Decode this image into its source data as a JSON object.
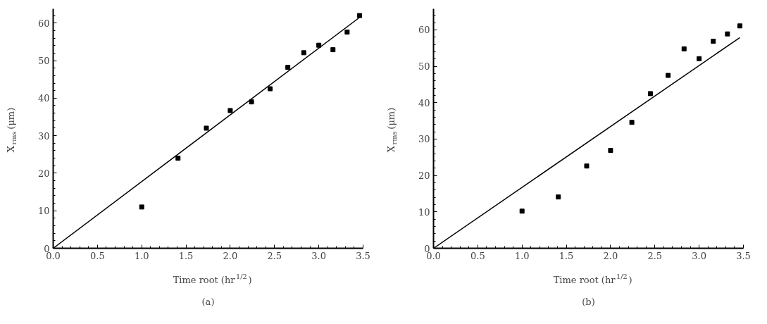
{
  "chart_data": [
    {
      "type": "scatter",
      "xlabel": "Time root (hr$^{1/2}$)",
      "ylabel": "X$_{rms}$ (μm)",
      "annotations": [
        "(a)"
      ],
      "xlim": [
        0,
        3.5
      ],
      "xticks": [
        {
          "value": 0,
          "label": "0.0"
        },
        0.5,
        {
          "value": 1,
          "label": "1.0"
        },
        1.5,
        {
          "value": 2,
          "label": "2.0"
        },
        2.5,
        {
          "value": 3,
          "label": "3.0"
        },
        3.5
      ],
      "ylim": [
        0,
        63.8
      ],
      "yticks": [
        0,
        10,
        20,
        30,
        40,
        50,
        60
      ],
      "grid": false,
      "series": [
        {
          "marker": "square",
          "color": "#000000",
          "x": [
            1.0,
            1.41,
            1.73,
            2.0,
            2.24,
            2.45,
            2.65,
            2.83,
            3.0,
            3.16,
            3.32,
            3.46
          ],
          "values": [
            11,
            24,
            32,
            36.7,
            39,
            42.5,
            48.2,
            52.1,
            54.1,
            52.9,
            57.6,
            62
          ]
        },
        {
          "type": "line",
          "color": "#000000",
          "line_style": "solid",
          "x": [
            0,
            3.46
          ],
          "values": [
            0,
            61.5
          ]
        }
      ]
    },
    {
      "type": "scatter",
      "xlabel": "Time root (hr$^{1/2}$)",
      "ylabel": "X$_{rms}$ (μm)",
      "annotations": [
        "(b)"
      ],
      "xlim": [
        0,
        3.5
      ],
      "xticks": [
        {
          "value": 0,
          "label": "0.0"
        },
        0.5,
        {
          "value": 1,
          "label": "1.0"
        },
        1.5,
        {
          "value": 2,
          "label": "2.0"
        },
        2.5,
        {
          "value": 3,
          "label": "3.0"
        },
        3.5
      ],
      "ylim": [
        0,
        65.8
      ],
      "yticks": [
        0,
        10,
        20,
        30,
        40,
        50,
        60
      ],
      "grid": false,
      "series": [
        {
          "marker": "square",
          "color": "#000000",
          "x": [
            1.0,
            1.41,
            1.73,
            2.0,
            2.24,
            2.45,
            2.65,
            2.83,
            3.0,
            3.16,
            3.32,
            3.46
          ],
          "values": [
            10.2,
            14.1,
            22.6,
            26.9,
            34.6,
            42.5,
            47.5,
            54.8,
            52.1,
            56.9,
            58.9,
            61.1
          ]
        },
        {
          "type": "line",
          "color": "#000000",
          "line_style": "solid",
          "x": [
            0,
            3.46
          ],
          "values": [
            0,
            57.9
          ]
        }
      ]
    }
  ]
}
